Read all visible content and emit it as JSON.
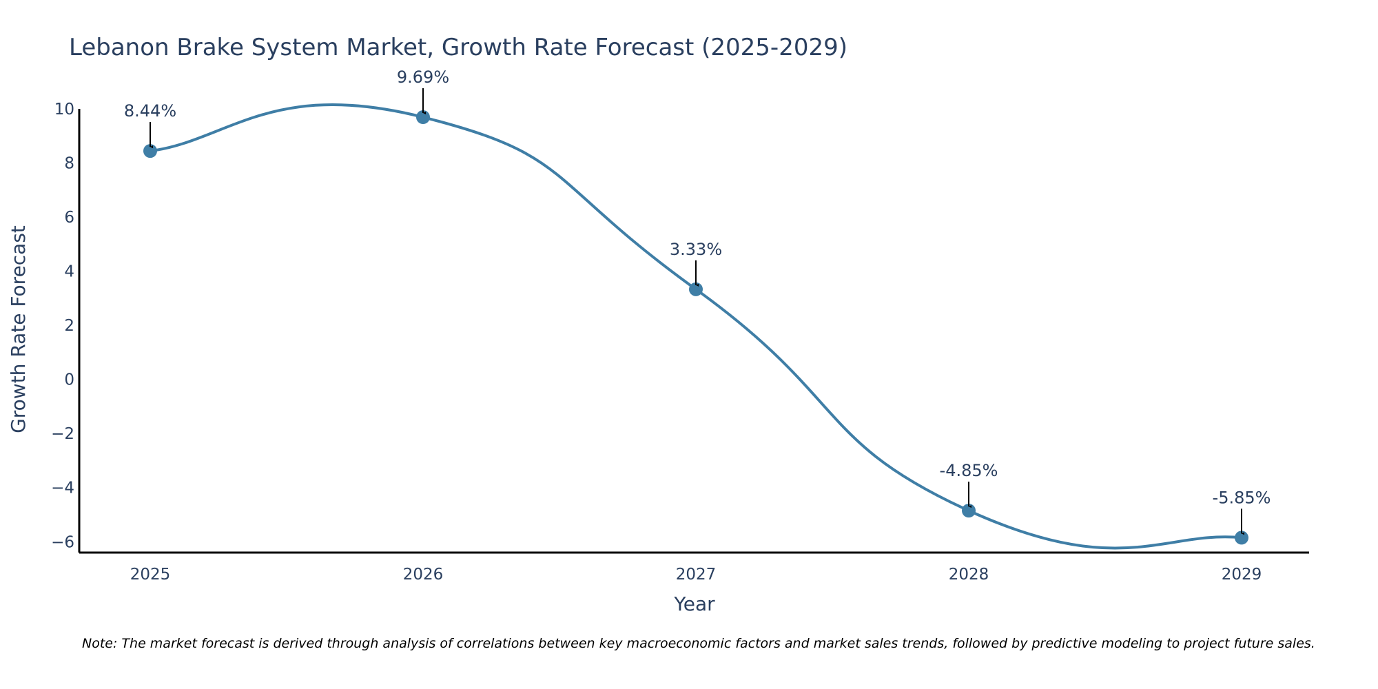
{
  "colors": {
    "line": "#3f7ea6",
    "marker": "#3f7ea6",
    "axis": "#000000",
    "arrow": "#000000",
    "text": "#2a3f5f"
  },
  "chart_data": {
    "type": "line",
    "title": "Lebanon Brake System Market, Growth Rate Forecast (2025-2029)",
    "xlabel": "Year",
    "ylabel": "Growth Rate Forecast",
    "categories": [
      "2025",
      "2026",
      "2027",
      "2028",
      "2029"
    ],
    "series": [
      {
        "name": "Growth Rate Forecast",
        "values": [
          8.44,
          9.69,
          3.33,
          -4.85,
          -5.85
        ]
      }
    ],
    "data_labels": [
      "8.44%",
      "9.69%",
      "3.33%",
      "-4.85%",
      "-5.85%"
    ],
    "ylim": [
      -6.4,
      10.2
    ],
    "yticks": [
      10,
      8,
      6,
      4,
      2,
      0,
      -2,
      -4,
      -6
    ],
    "ytick_labels": [
      "10",
      "8",
      "6",
      "4",
      "2",
      "0",
      "−2",
      "−4",
      "−6"
    ],
    "grid": false,
    "line_shape": "spline",
    "note": "Note: The market forecast is derived through analysis of correlations between key macroeconomic factors and market sales trends, followed by predictive modeling to project future sales."
  }
}
